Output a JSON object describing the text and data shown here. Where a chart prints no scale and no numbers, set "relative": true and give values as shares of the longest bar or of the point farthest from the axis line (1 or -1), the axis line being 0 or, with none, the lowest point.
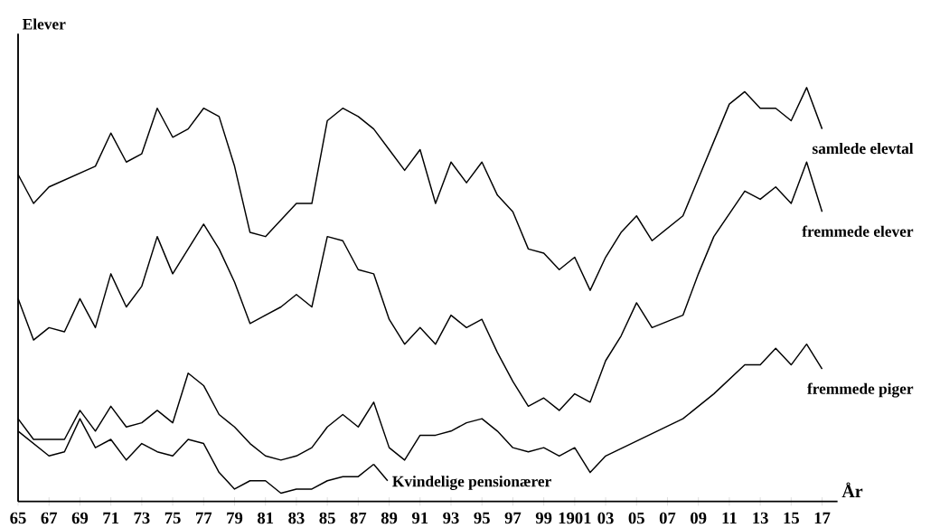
{
  "chart_data": {
    "type": "line",
    "relative": true,
    "xlabel": "År",
    "ylabel": "Elever",
    "xlim": [
      1865,
      1918
    ],
    "xticks": [
      {
        "value": 1865,
        "label": "65"
      },
      {
        "value": 1867,
        "label": "67"
      },
      {
        "value": 1869,
        "label": "69"
      },
      {
        "value": 1871,
        "label": "71"
      },
      {
        "value": 1873,
        "label": "73"
      },
      {
        "value": 1875,
        "label": "75"
      },
      {
        "value": 1877,
        "label": "77"
      },
      {
        "value": 1879,
        "label": "79"
      },
      {
        "value": 1881,
        "label": "81"
      },
      {
        "value": 1883,
        "label": "83"
      },
      {
        "value": 1885,
        "label": "85"
      },
      {
        "value": 1887,
        "label": "87"
      },
      {
        "value": 1889,
        "label": "89"
      },
      {
        "value": 1891,
        "label": "91"
      },
      {
        "value": 1893,
        "label": "93"
      },
      {
        "value": 1895,
        "label": "95"
      },
      {
        "value": 1897,
        "label": "97"
      },
      {
        "value": 1899,
        "label": "99"
      },
      {
        "value": 1901,
        "label": "1901"
      },
      {
        "value": 1903,
        "label": "03"
      },
      {
        "value": 1905,
        "label": "05"
      },
      {
        "value": 1907,
        "label": "07"
      },
      {
        "value": 1909,
        "label": "09"
      },
      {
        "value": 1911,
        "label": "11"
      },
      {
        "value": 1913,
        "label": "13"
      },
      {
        "value": 1915,
        "label": "15"
      },
      {
        "value": 1917,
        "label": "17"
      }
    ],
    "marker": "none",
    "line_style": "solid",
    "grid": false,
    "series": [
      {
        "name": "samlede elevtal",
        "color": "#000000",
        "x": [
          1865,
          1866,
          1867,
          1870,
          1871,
          1872,
          1873,
          1874,
          1875,
          1876,
          1877,
          1878,
          1879,
          1880,
          1881,
          1882,
          1883,
          1884,
          1885,
          1886,
          1887,
          1888,
          1889,
          1890,
          1891,
          1892,
          1893,
          1894,
          1895,
          1896,
          1897,
          1898,
          1899,
          1900,
          1901,
          1902,
          1903,
          1904,
          1905,
          1906,
          1908,
          1909,
          1910,
          1911,
          1912,
          1913,
          1914,
          1915,
          1916,
          1917
        ],
        "values": [
          0.79,
          0.72,
          0.76,
          0.81,
          0.89,
          0.82,
          0.84,
          0.95,
          0.88,
          0.9,
          0.95,
          0.93,
          0.81,
          0.65,
          0.64,
          0.68,
          0.72,
          0.72,
          0.92,
          0.95,
          0.93,
          0.9,
          0.85,
          0.8,
          0.85,
          0.72,
          0.82,
          0.77,
          0.82,
          0.74,
          0.7,
          0.61,
          0.6,
          0.56,
          0.59,
          0.51,
          0.59,
          0.65,
          0.69,
          0.63,
          0.69,
          0.78,
          0.87,
          0.96,
          0.99,
          0.95,
          0.95,
          0.92,
          1,
          0.9
        ]
      },
      {
        "name": "fremmede elever",
        "color": "#000000",
        "x": [
          1865,
          1866,
          1867,
          1868,
          1869,
          1870,
          1871,
          1872,
          1873,
          1874,
          1875,
          1876,
          1877,
          1878,
          1879,
          1880,
          1881,
          1882,
          1883,
          1884,
          1885,
          1886,
          1887,
          1888,
          1889,
          1890,
          1891,
          1892,
          1893,
          1894,
          1895,
          1896,
          1897,
          1898,
          1899,
          1900,
          1901,
          1902,
          1903,
          1904,
          1905,
          1906,
          1908,
          1909,
          1910,
          1912,
          1913,
          1914,
          1915,
          1916,
          1917
        ],
        "values": [
          0.49,
          0.39,
          0.42,
          0.41,
          0.49,
          0.42,
          0.55,
          0.47,
          0.52,
          0.64,
          0.55,
          0.61,
          0.67,
          0.61,
          0.53,
          0.43,
          0.45,
          0.47,
          0.5,
          0.47,
          0.64,
          0.63,
          0.56,
          0.55,
          0.44,
          0.38,
          0.42,
          0.38,
          0.45,
          0.42,
          0.44,
          0.36,
          0.29,
          0.23,
          0.25,
          0.22,
          0.26,
          0.24,
          0.34,
          0.4,
          0.48,
          0.42,
          0.45,
          0.55,
          0.64,
          0.75,
          0.73,
          0.76,
          0.72,
          0.82,
          0.7
        ]
      },
      {
        "name": "fremmede piger",
        "color": "#000000",
        "x": [
          1865,
          1866,
          1867,
          1868,
          1869,
          1870,
          1871,
          1872,
          1873,
          1874,
          1875,
          1876,
          1877,
          1878,
          1879,
          1880,
          1881,
          1882,
          1883,
          1884,
          1885,
          1886,
          1887,
          1888,
          1889,
          1890,
          1891,
          1892,
          1893,
          1894,
          1895,
          1896,
          1897,
          1898,
          1899,
          1900,
          1901,
          1902,
          1903,
          1908,
          1909,
          1910,
          1912,
          1913,
          1914,
          1915,
          1916,
          1917
        ],
        "values": [
          0.2,
          0.15,
          0.15,
          0.15,
          0.22,
          0.17,
          0.23,
          0.18,
          0.19,
          0.22,
          0.19,
          0.31,
          0.28,
          0.21,
          0.18,
          0.14,
          0.11,
          0.1,
          0.11,
          0.13,
          0.18,
          0.21,
          0.18,
          0.24,
          0.13,
          0.1,
          0.16,
          0.16,
          0.17,
          0.19,
          0.2,
          0.17,
          0.13,
          0.12,
          0.13,
          0.11,
          0.13,
          0.07,
          0.11,
          0.2,
          0.23,
          0.26,
          0.33,
          0.33,
          0.37,
          0.33,
          0.38,
          0.32
        ]
      },
      {
        "name": "Kvindelige pensionærer",
        "color": "#000000",
        "x": [
          1865,
          1866,
          1867,
          1868,
          1869,
          1870,
          1871,
          1872,
          1873,
          1874,
          1875,
          1876,
          1877,
          1878,
          1879,
          1880,
          1881,
          1882,
          1883,
          1884,
          1885,
          1886,
          1887,
          1888
        ],
        "values": [
          0.17,
          0.14,
          0.11,
          0.12,
          0.2,
          0.13,
          0.15,
          0.1,
          0.14,
          0.12,
          0.11,
          0.15,
          0.14,
          0.07,
          0.03,
          0.05,
          0.05,
          0.02,
          0.03,
          0.03,
          0.05,
          0.06,
          0.06,
          0.09
        ]
      }
    ]
  }
}
